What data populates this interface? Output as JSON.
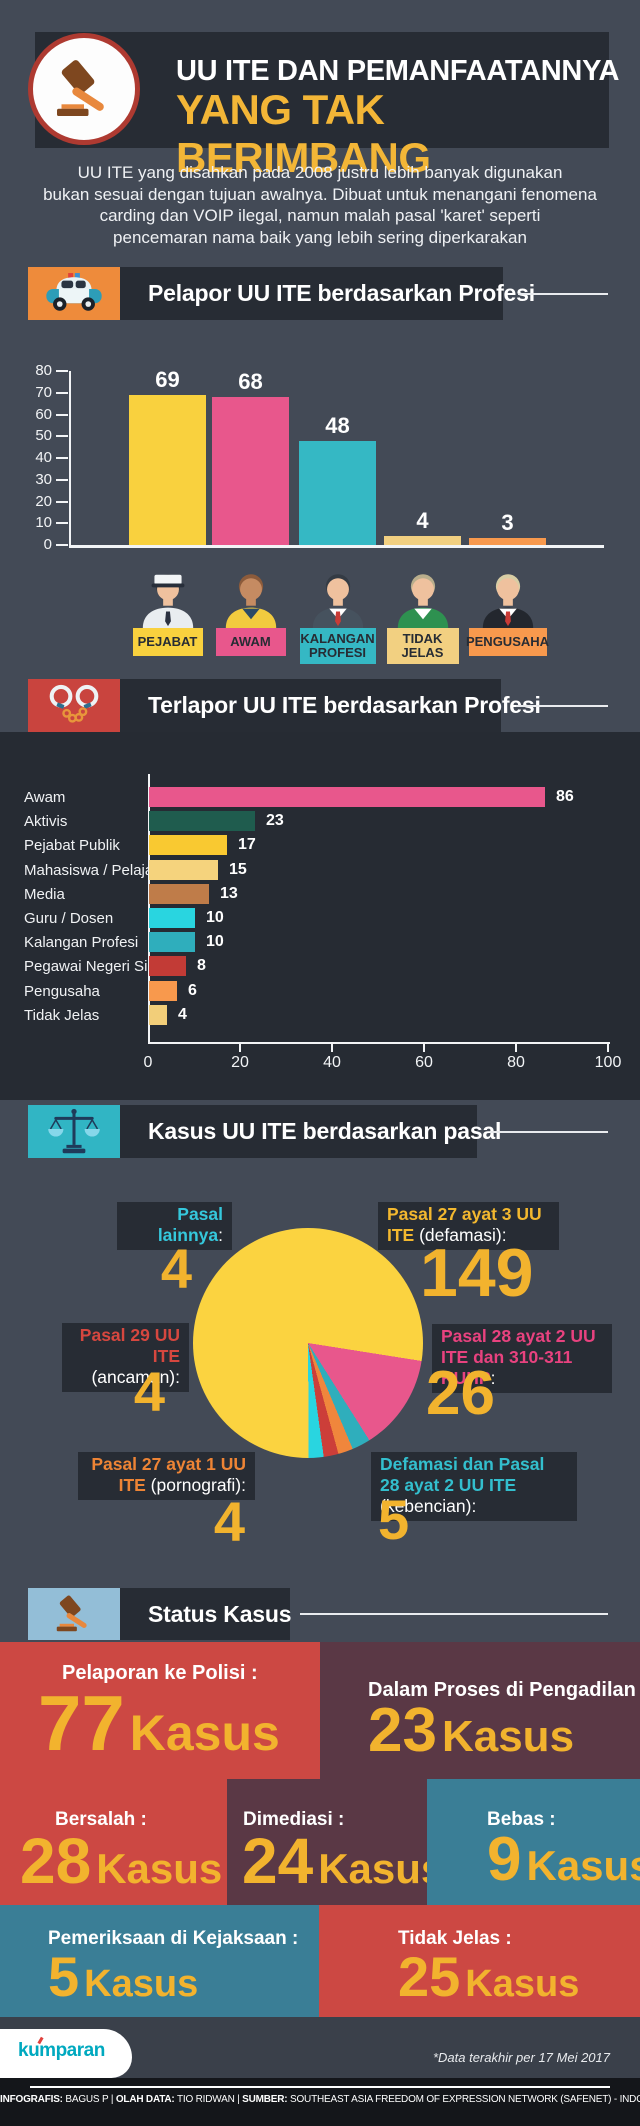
{
  "header": {
    "title_line1": "UU ITE DAN PEMANFAATANNYA",
    "title_line2": "YANG TAK BERIMBANG",
    "accent_color": "#F3B637"
  },
  "intro": {
    "lines": [
      "UU ITE yang disahkan pada 2008 justru lebih banyak digunakan",
      "bukan sesuai dengan tujuan awalnya. Dibuat untuk menangani fenomena",
      "carding dan VOIP ilegal, namun malah pasal 'karet' seperti",
      "pencemaran nama baik yang lebih sering diperkarakan"
    ]
  },
  "sections": {
    "pelapor": {
      "title": "Pelapor UU ITE berdasarkan Profesi",
      "icon": "police-car-icon",
      "icon_bg": "#EE8B3B"
    },
    "terlapor": {
      "title": "Terlapor UU ITE berdasarkan Profesi",
      "icon": "handcuffs-icon",
      "icon_bg": "#C9443E"
    },
    "pasal": {
      "title": "Kasus UU ITE berdasarkan pasal",
      "icon": "scales-icon",
      "icon_bg": "#31B5C4"
    },
    "status": {
      "title": "Status Kasus",
      "icon": "gavel-icon",
      "icon_bg": "#93BED7"
    }
  },
  "chart_data": [
    {
      "type": "bar",
      "title": "Pelapor UU ITE berdasarkan Profesi",
      "categories": [
        "PEJABAT",
        "AWAM",
        "KALANGAN PROFESI",
        "TIDAK JELAS",
        "PENGUSAHA"
      ],
      "values": [
        69,
        68,
        48,
        4,
        3
      ],
      "colors": [
        "#F9D13E",
        "#E8578C",
        "#35B8C4",
        "#F2D081",
        "#F8994D"
      ],
      "ylim": [
        0,
        80
      ],
      "yticks": [
        0,
        10,
        20,
        30,
        40,
        50,
        60,
        70,
        80
      ],
      "grid": false,
      "legend": "avatar icons under each bar",
      "avatars": [
        {
          "skin": "#EFC19E",
          "hair": "#3A3F45",
          "shirt": "#E9EDF0",
          "collar": "",
          "tie": "#2A3140",
          "hat": "captain"
        },
        {
          "skin": "#C58B62",
          "hair": "#8C5B3B",
          "shirt": "#F2CB3F",
          "collar": "#2C4A66",
          "tie": "",
          "hat": ""
        },
        {
          "skin": "#EFC19E",
          "hair": "#343B44",
          "shirt": "#46525E",
          "collar": "#FFFFFF",
          "tie": "#C93B36",
          "hat": ""
        },
        {
          "skin": "#EFC19E",
          "hair": "#B9AE8C",
          "shirt": "#2E9150",
          "collar": "#FFFFFF",
          "tie": "",
          "hat": ""
        },
        {
          "skin": "#EFC19E",
          "hair": "#D8CDA4",
          "shirt": "#23272E",
          "collar": "#FFFFFF",
          "tie": "#C93B36",
          "hat": ""
        }
      ]
    },
    {
      "type": "bar",
      "orientation": "horizontal",
      "title": "Terlapor UU ITE berdasarkan Profesi",
      "categories": [
        "Awam",
        "Aktivis",
        "Pejabat Publik",
        "Mahasiswa / Pelajar",
        "Media",
        "Guru / Dosen",
        "Kalangan Profesi",
        "Pegawai Negeri Sipil",
        "Pengusaha",
        "Tidak Jelas"
      ],
      "values": [
        86,
        23,
        17,
        15,
        13,
        10,
        10,
        8,
        6,
        4
      ],
      "colors": [
        "#E8578C",
        "#1F5C4E",
        "#F9C931",
        "#F5D37D",
        "#BF7C49",
        "#29D5E0",
        "#2FAEBC",
        "#C23B36",
        "#F8994D",
        "#F2CE79"
      ],
      "xlim": [
        0,
        100
      ],
      "xticks": [
        0,
        20,
        40,
        60,
        80,
        100
      ],
      "grid": false
    },
    {
      "type": "pie",
      "title": "Kasus UU ITE berdasarkan pasal",
      "start_angle_deg_clockwise_from_top": 99,
      "total": 192,
      "slices_in_draw_order": [
        {
          "label": "Pasal 28 ayat 2 UU ITE dan 310-311 KUHP",
          "value": 26,
          "color": "#E8578C"
        },
        {
          "label": "Defamasi dan Pasal 28 ayat 2 UU ITE (kebencian)",
          "value": 5,
          "color": "#2FAEBC"
        },
        {
          "label": "Pasal 27 ayat 1 UU ITE (pornografi)",
          "value": 4,
          "color": "#F0863C"
        },
        {
          "label": "Pasal 29 UU ITE (ancaman)",
          "value": 4,
          "color": "#CC3E39"
        },
        {
          "label": "Pasal lainnya",
          "value": 4,
          "color": "#29D5E0"
        },
        {
          "label": "Pasal 27 ayat 3 UU ITE (defamasi)",
          "value": 149,
          "color": "#FBD340"
        }
      ],
      "number_color": "#F2B32E"
    }
  ],
  "pie_labels": [
    {
      "segments": [
        {
          "text": "Pasal lainnya",
          "color": "#35C8DC"
        },
        {
          "text": ":",
          "color": "#FFFFFF"
        }
      ],
      "value": "4"
    },
    {
      "segments": [
        {
          "text": "Pasal 27 ayat 3 UU ITE",
          "color": "#F3B82F"
        },
        {
          "text": " (defamasi):",
          "color": "#FFFFFF"
        }
      ],
      "value": "149"
    },
    {
      "segments": [
        {
          "text": "Pasal 29 UU ITE",
          "color": "#D6473F"
        },
        {
          "text": " (ancaman):",
          "color": "#FFFFFF"
        }
      ],
      "value": "4"
    },
    {
      "segments": [
        {
          "text": "Pasal 28 ayat 2 UU ITE dan 310-311 KUHP",
          "color": "#E8427F"
        },
        {
          "text": ":",
          "color": "#FFFFFF"
        }
      ],
      "value": "26"
    },
    {
      "segments": [
        {
          "text": "Pasal 27 ayat 1 UU ITE",
          "color": "#EE8435"
        },
        {
          "text": " (pornografi):",
          "color": "#FFFFFF"
        }
      ],
      "value": "4"
    },
    {
      "segments": [
        {
          "text": "Defamasi dan Pasal 28 ayat 2 UU ITE",
          "color": "#33BFCE"
        },
        {
          "text": " (kebencian):",
          "color": "#FFFFFF"
        }
      ],
      "value": "5"
    }
  ],
  "status_cards": {
    "unit": "Kasus",
    "number_color": "#F2B32E",
    "rows": [
      [
        {
          "label": "Pelaporan ke Polisi :",
          "value": "77",
          "bg": "#CC4843"
        },
        {
          "label": "Dalam Proses di Pengadilan :",
          "value": "23",
          "bg": "#5A3845"
        }
      ],
      [
        {
          "label": "Bersalah :",
          "value": "28",
          "bg": "#CC4843"
        },
        {
          "label": "Dimediasi :",
          "value": "24",
          "bg": "#5A3845"
        },
        {
          "label": "Bebas :",
          "value": "9",
          "bg": "#3A7E96"
        }
      ],
      [
        {
          "label": "Pemeriksaan di Kejaksaan :",
          "value": "5",
          "bg": "#3A7E96"
        },
        {
          "label": "Tidak Jelas :",
          "value": "25",
          "bg": "#CC4843"
        }
      ]
    ]
  },
  "footer": {
    "logo_text": "kumparan",
    "note": "*Data terakhir per 17 Mei 2017",
    "separator": "|",
    "credits": [
      {
        "label": "INFOGRAFIS:",
        "value": "BAGUS P"
      },
      {
        "label": "OLAH DATA:",
        "value": "TIO RIDWAN"
      },
      {
        "label": "SUMBER:",
        "value": "SOUTHEAST ASIA FREEDOM OF EXPRESSION NETWORK (SAFENET) - INDONESIA"
      }
    ]
  }
}
